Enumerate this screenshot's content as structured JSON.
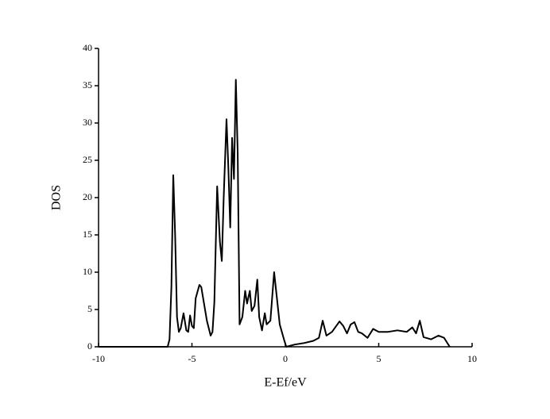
{
  "chart_data": {
    "type": "line",
    "x_label": "E-Ef/eV",
    "y_label": "DOS",
    "xlim": [
      -10,
      10
    ],
    "xticks": [
      -10,
      -5,
      0,
      5,
      10
    ],
    "ylim": [
      0,
      40
    ],
    "yticks": [
      0,
      5,
      10,
      15,
      20,
      25,
      30,
      35,
      40
    ],
    "color": "#000000",
    "x": [
      -10,
      -6.3,
      -6.2,
      -6.1,
      -6.0,
      -5.9,
      -5.8,
      -5.7,
      -5.6,
      -5.45,
      -5.3,
      -5.2,
      -5.1,
      -5.0,
      -4.9,
      -4.8,
      -4.6,
      -4.5,
      -4.4,
      -4.2,
      -4.0,
      -3.9,
      -3.8,
      -3.65,
      -3.5,
      -3.4,
      -3.3,
      -3.15,
      -3.05,
      -2.95,
      -2.85,
      -2.75,
      -2.65,
      -2.55,
      -2.45,
      -2.3,
      -2.15,
      -2.05,
      -1.9,
      -1.8,
      -1.65,
      -1.5,
      -1.4,
      -1.25,
      -1.1,
      -1.0,
      -0.8,
      -0.6,
      -0.45,
      -0.3,
      -0.05,
      0.05,
      0.5,
      1.0,
      1.5,
      1.8,
      2.0,
      2.2,
      2.5,
      2.9,
      3.1,
      3.3,
      3.5,
      3.7,
      3.9,
      4.1,
      4.4,
      4.7,
      5.0,
      5.5,
      6.0,
      6.5,
      6.8,
      7.0,
      7.2,
      7.4,
      7.8,
      8.2,
      8.5,
      8.8
    ],
    "values": [
      0,
      0,
      1,
      8,
      23,
      15,
      4,
      2,
      2.5,
      4.5,
      2.2,
      2,
      4.2,
      2.8,
      2.5,
      6.5,
      8.3,
      8,
      6.5,
      3.5,
      1.5,
      2,
      6,
      21.5,
      14,
      11.5,
      20,
      30.5,
      24,
      16,
      28,
      22.5,
      35.8,
      26,
      3,
      4,
      7.5,
      5.8,
      7.5,
      4.8,
      5.5,
      9,
      4,
      2.2,
      4.5,
      3,
      3.5,
      10,
      6.5,
      3,
      0.8,
      0,
      0.3,
      0.5,
      0.8,
      1.2,
      3.5,
      1.5,
      2,
      3.4,
      2.8,
      1.8,
      3,
      3.3,
      2,
      1.8,
      1.2,
      2.4,
      2,
      2,
      2.2,
      2,
      2.6,
      1.8,
      3.5,
      1.3,
      1,
      1.5,
      1.2,
      0
    ]
  }
}
